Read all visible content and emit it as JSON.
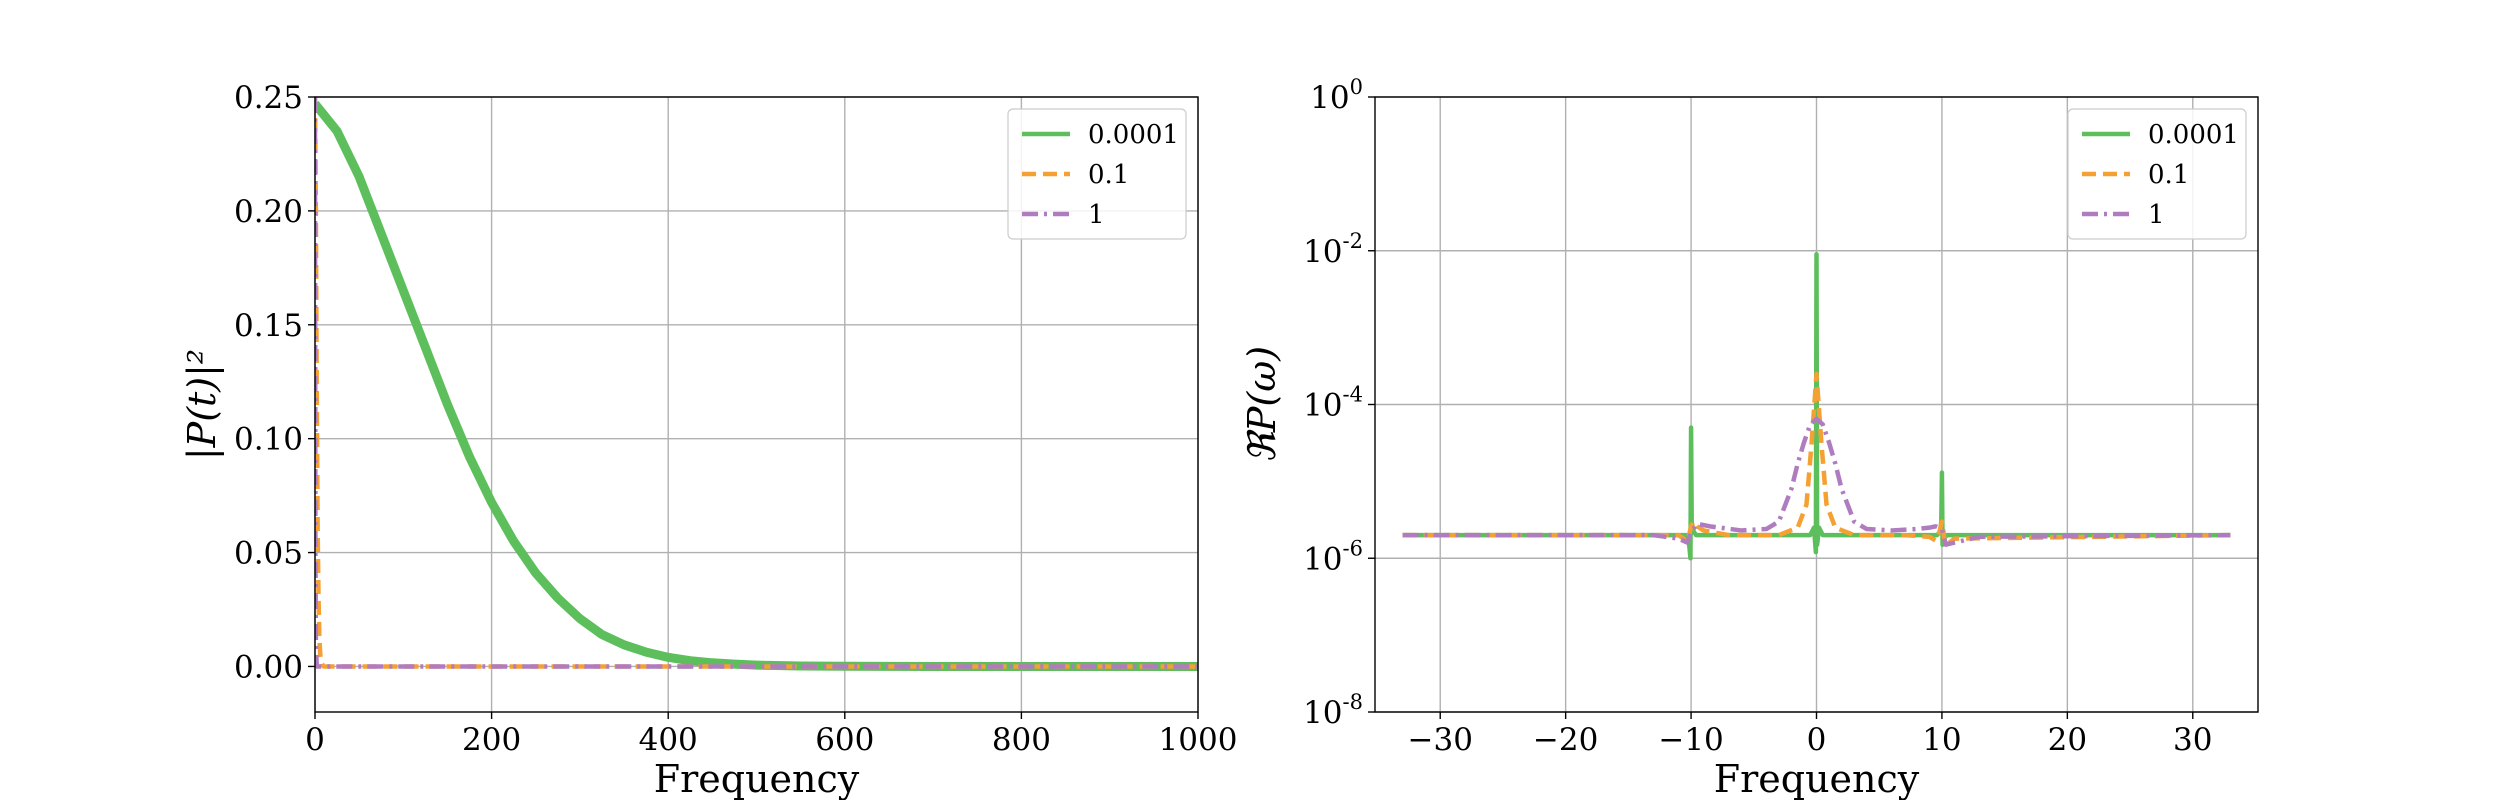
{
  "chart_data": [
    {
      "type": "line",
      "xlabel": "Frequency",
      "ylabel": "|P(t)|²",
      "xlim": [
        0,
        1000
      ],
      "ylim": [
        -0.02,
        0.25
      ],
      "xticks": [
        0,
        200,
        400,
        600,
        800,
        1000
      ],
      "xtick_labels": [
        "0",
        "200",
        "400",
        "600",
        "800",
        "1000"
      ],
      "yticks": [
        0.0,
        0.05,
        0.1,
        0.15,
        0.2,
        0.25
      ],
      "ytick_labels": [
        "0.00",
        "0.05",
        "0.10",
        "0.15",
        "0.20",
        "0.25"
      ],
      "grid": true,
      "legend_position": "top-right",
      "series": [
        {
          "name": "0.0001",
          "color": "#5cbf5c",
          "style": "solid",
          "x": [
            0,
            25,
            50,
            75,
            100,
            125,
            150,
            175,
            200,
            225,
            250,
            275,
            300,
            325,
            350,
            375,
            400,
            425,
            450,
            475,
            500,
            550,
            600,
            700,
            800,
            900,
            1000
          ],
          "y": [
            0.247,
            0.235,
            0.215,
            0.19,
            0.165,
            0.14,
            0.115,
            0.092,
            0.072,
            0.055,
            0.041,
            0.03,
            0.021,
            0.014,
            0.0095,
            0.0063,
            0.004,
            0.0025,
            0.0016,
            0.001,
            0.0006,
            0.0002,
            0.0001,
            0.0,
            0.0,
            0.0,
            0.0
          ]
        },
        {
          "name": "0.1",
          "color": "#f5a033",
          "style": "dashed",
          "x": [
            0,
            1,
            2,
            3,
            4,
            5,
            6,
            8,
            10,
            15,
            1000
          ],
          "y": [
            0.25,
            0.2,
            0.12,
            0.06,
            0.03,
            0.012,
            0.005,
            0.001,
            0.0,
            0.0,
            0.0
          ]
        },
        {
          "name": "1",
          "color": "#b07cc0",
          "style": "dashdot",
          "x": [
            0,
            0.5,
            1,
            2,
            3,
            1000
          ],
          "y": [
            0.25,
            0.05,
            0.01,
            0.0,
            0.0,
            0.0
          ]
        }
      ]
    },
    {
      "type": "line",
      "xlabel": "Frequency",
      "ylabel": "ℜP(ω)",
      "xlim": [
        -35.2,
        35.2
      ],
      "ylim": [
        1e-08,
        1
      ],
      "yscale": "log",
      "xticks": [
        -30,
        -20,
        -10,
        0,
        10,
        20,
        30
      ],
      "xtick_labels": [
        "−30",
        "−20",
        "−10",
        "0",
        "10",
        "20",
        "30"
      ],
      "yticks": [
        1e-08,
        1e-06,
        0.0001,
        0.01,
        1
      ],
      "ytick_bases": [
        "10",
        "10",
        "10",
        "10",
        "10"
      ],
      "ytick_exponents": [
        "-8",
        "-6",
        "-4",
        "-2",
        "0"
      ],
      "grid": true,
      "legend_position": "top-right",
      "series": [
        {
          "name": "0.0001",
          "color": "#5cbf5c",
          "style": "solid",
          "x": [
            -33,
            -10.4,
            -10.15,
            -10.05,
            -10.0,
            -9.95,
            -9.85,
            -9.6,
            -0.5,
            -0.2,
            -0.05,
            0.0,
            0.05,
            0.2,
            0.5,
            9.6,
            9.85,
            9.95,
            10.0,
            10.05,
            10.15,
            10.4,
            33
          ],
          "y": [
            2e-06,
            2e-06,
            1.5e-06,
            1e-06,
            5e-05,
            3e-06,
            2.3e-06,
            2e-06,
            2e-06,
            2.5e-06,
            1.2e-06,
            0.009,
            1.5e-06,
            2.5e-06,
            2e-06,
            2e-06,
            2.2e-06,
            3e-06,
            1.3e-05,
            1.5e-06,
            1.8e-06,
            2e-06,
            2e-06
          ]
        },
        {
          "name": "0.1",
          "color": "#f5a033",
          "style": "dashed",
          "x": [
            -33,
            -11,
            -10.6,
            -10.3,
            -10.0,
            -9.8,
            -9.5,
            -9.0,
            -7,
            -3,
            -1.5,
            -0.8,
            -0.4,
            0.0,
            0.4,
            0.8,
            1.5,
            3,
            7,
            9.0,
            9.5,
            9.8,
            10.0,
            10.3,
            10.6,
            11,
            33
          ],
          "y": [
            2e-06,
            2e-06,
            1.8e-06,
            1.6e-06,
            2.6e-06,
            3e-06,
            2.6e-06,
            2.3e-06,
            2e-06,
            2e-06,
            2.5e-06,
            5e-06,
            3e-05,
            0.00025,
            3e-05,
            5e-06,
            2.5e-06,
            2e-06,
            2e-06,
            1.9e-06,
            1.7e-06,
            2.2e-06,
            3e-06,
            1.4e-06,
            1.6e-06,
            1.8e-06,
            2e-06
          ]
        },
        {
          "name": "1",
          "color": "#b07cc0",
          "style": "dashdot",
          "x": [
            -33,
            -13,
            -11,
            -10.3,
            -10.0,
            -9.5,
            -8.5,
            -6,
            -4,
            -3,
            -2,
            -1.5,
            -1,
            -0.5,
            0.0,
            0.5,
            1,
            1.5,
            2,
            3,
            4,
            6,
            8,
            9.0,
            9.5,
            10.0,
            10.3,
            11,
            13,
            33
          ],
          "y": [
            2e-06,
            2e-06,
            1.8e-06,
            1.6e-06,
            2.2e-06,
            2.8e-06,
            2.6e-06,
            2.3e-06,
            2.4e-06,
            3e-06,
            8e-06,
            1.7e-05,
            3.2e-05,
            5.5e-05,
            6.5e-05,
            5.5e-05,
            3.2e-05,
            1.7e-05,
            8e-06,
            3e-06,
            2.4e-06,
            2.3e-06,
            2.4e-06,
            2.5e-06,
            2.6e-06,
            2.4e-06,
            1.5e-06,
            1.6e-06,
            1.9e-06,
            2e-06
          ]
        }
      ]
    }
  ]
}
